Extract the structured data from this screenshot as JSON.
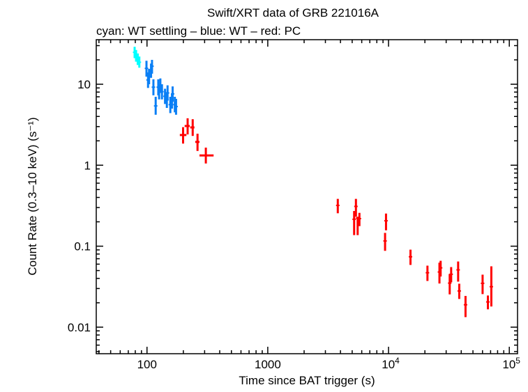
{
  "chart_data": {
    "type": "scatter",
    "title": "Swift/XRT data of GRB 221016A",
    "subtitle": "cyan: WT settling – blue: WT – red: PC",
    "xlabel": "Time since BAT trigger (s)",
    "ylabel": "Count Rate (0.3–10 keV) (s⁻¹)",
    "xscale": "log",
    "yscale": "log",
    "xlim": [
      38,
      117000
    ],
    "ylim": [
      0.0047,
      35.5
    ],
    "grid": false,
    "x_ticks": [
      {
        "v": 100,
        "label": "100"
      },
      {
        "v": 1000,
        "label": "1000"
      },
      {
        "v": 10000,
        "label": "10",
        "exp": "4"
      },
      {
        "v": 100000,
        "label": "10",
        "exp": "5"
      }
    ],
    "y_ticks": [
      {
        "v": 0.01,
        "label": "0.01"
      },
      {
        "v": 0.1,
        "label": "0.1"
      },
      {
        "v": 1,
        "label": "1"
      },
      {
        "v": 10,
        "label": "10"
      }
    ],
    "series": [
      {
        "color": "#00ffff",
        "points": [
          {
            "x": 79,
            "y": 24.8,
            "ylo": 21,
            "yhi": 29
          },
          {
            "x": 81.2,
            "y": 22.5,
            "ylo": 19,
            "yhi": 26.5
          },
          {
            "x": 83.8,
            "y": 20.4,
            "ylo": 17.3,
            "yhi": 24
          },
          {
            "x": 86.4,
            "y": 18.7,
            "ylo": 16,
            "yhi": 22
          }
        ]
      },
      {
        "color": "#0a7ff5",
        "points": [
          {
            "x": 99,
            "y": 15.7,
            "ylo": 12.4,
            "yhi": 19.5
          },
          {
            "x": 102,
            "y": 11.3,
            "ylo": 9,
            "yhi": 14
          },
          {
            "x": 104,
            "y": 12.4,
            "ylo": 10,
            "yhi": 15.5
          },
          {
            "x": 108,
            "y": 14.6,
            "ylo": 12,
            "yhi": 18
          },
          {
            "x": 110,
            "y": 16.7,
            "ylo": 13.5,
            "yhi": 20
          },
          {
            "x": 113,
            "y": 9.2,
            "ylo": 7.3,
            "yhi": 11.5
          },
          {
            "x": 118,
            "y": 5.4,
            "ylo": 4.2,
            "yhi": 7
          },
          {
            "x": 124,
            "y": 9.2,
            "ylo": 7.3,
            "yhi": 11.5
          },
          {
            "x": 126,
            "y": 8.1,
            "ylo": 6.5,
            "yhi": 10
          },
          {
            "x": 129,
            "y": 9.6,
            "ylo": 7.8,
            "yhi": 11.8
          },
          {
            "x": 133,
            "y": 8.1,
            "ylo": 6.5,
            "yhi": 10
          },
          {
            "x": 141,
            "y": 7.1,
            "ylo": 5.7,
            "yhi": 8.8
          },
          {
            "x": 146,
            "y": 6.4,
            "ylo": 5.1,
            "yhi": 8
          },
          {
            "x": 148,
            "y": 7.8,
            "ylo": 6.3,
            "yhi": 9.7
          },
          {
            "x": 156,
            "y": 5.6,
            "ylo": 4.4,
            "yhi": 7
          },
          {
            "x": 161,
            "y": 6.2,
            "ylo": 5,
            "yhi": 7.7
          },
          {
            "x": 163,
            "y": 7.6,
            "ylo": 6.1,
            "yhi": 9.4
          },
          {
            "x": 170,
            "y": 5.6,
            "ylo": 4.5,
            "yhi": 7
          },
          {
            "x": 174,
            "y": 5.3,
            "ylo": 4.2,
            "yhi": 6.6
          }
        ]
      },
      {
        "color": "#ff0000",
        "points": [
          {
            "x": 199,
            "y": 2.36,
            "xlo": 187,
            "xhi": 212,
            "ylo": 1.85,
            "yhi": 2.95
          },
          {
            "x": 217,
            "y": 3.05,
            "xlo": 205,
            "xhi": 226,
            "ylo": 2.4,
            "yhi": 3.8
          },
          {
            "x": 239,
            "y": 2.93,
            "xlo": 228,
            "xhi": 247,
            "ylo": 2.3,
            "yhi": 3.7
          },
          {
            "x": 262,
            "y": 1.94,
            "xlo": 251,
            "xhi": 272,
            "ylo": 1.5,
            "yhi": 2.45
          },
          {
            "x": 307,
            "y": 1.32,
            "xlo": 272,
            "xhi": 356,
            "ylo": 1.05,
            "yhi": 1.65
          },
          {
            "x": 3800,
            "y": 0.319,
            "ylo": 0.255,
            "yhi": 0.384
          },
          {
            "x": 5370,
            "y": 0.31,
            "ylo": 0.231,
            "yhi": 0.384
          },
          {
            "x": 5190,
            "y": 0.215,
            "ylo": 0.137,
            "yhi": 0.272
          },
          {
            "x": 5550,
            "y": 0.222,
            "ylo": 0.137,
            "yhi": 0.231
          },
          {
            "x": 5740,
            "y": 0.219,
            "ylo": 0.177,
            "yhi": 0.258
          },
          {
            "x": 9530,
            "y": 0.206,
            "ylo": 0.157,
            "yhi": 0.253
          },
          {
            "x": 9360,
            "y": 0.116,
            "ylo": 0.0876,
            "yhi": 0.146
          },
          {
            "x": 15200,
            "y": 0.074,
            "ylo": 0.0587,
            "yhi": 0.0906
          },
          {
            "x": 21000,
            "y": 0.047,
            "ylo": 0.0372,
            "yhi": 0.0575
          },
          {
            "x": 26400,
            "y": 0.048,
            "ylo": 0.0346,
            "yhi": 0.0626
          },
          {
            "x": 27000,
            "y": 0.054,
            "ylo": 0.0422,
            "yhi": 0.066
          },
          {
            "x": 32100,
            "y": 0.035,
            "ylo": 0.0254,
            "yhi": 0.0454
          },
          {
            "x": 33000,
            "y": 0.045,
            "ylo": 0.0358,
            "yhi": 0.0552
          },
          {
            "x": 37700,
            "y": 0.051,
            "ylo": 0.0365,
            "yhi": 0.0647
          },
          {
            "x": 38500,
            "y": 0.028,
            "ylo": 0.0223,
            "yhi": 0.0344
          },
          {
            "x": 43400,
            "y": 0.0189,
            "ylo": 0.0133,
            "yhi": 0.0243
          },
          {
            "x": 60100,
            "y": 0.0348,
            "ylo": 0.0256,
            "yhi": 0.0445
          },
          {
            "x": 66500,
            "y": 0.0205,
            "ylo": 0.0166,
            "yhi": 0.0246
          },
          {
            "x": 71000,
            "y": 0.0316,
            "ylo": 0.018,
            "yhi": 0.0564
          }
        ]
      }
    ]
  }
}
